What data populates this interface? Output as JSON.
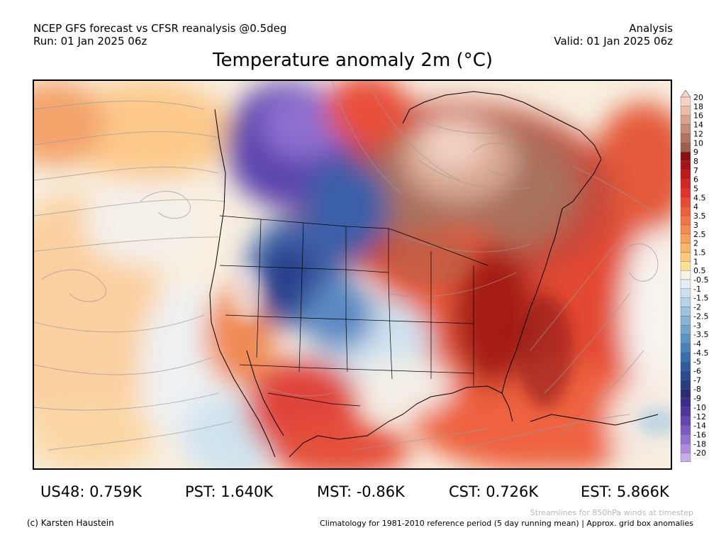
{
  "header": {
    "product": "NCEP GFS forecast vs CFSR reanalysis @0.5deg",
    "run": "Run: 01 Jan 2025 06z",
    "mode": "Analysis",
    "valid": "Valid: 01 Jan 2025 06z"
  },
  "title": "Temperature anomaly 2m (°C)",
  "colorbar": {
    "labels": [
      "20",
      "18",
      "16",
      "14",
      "12",
      "10",
      "9",
      "8",
      "7",
      "6",
      "5",
      "4.5",
      "4",
      "3.5",
      "3",
      "2.5",
      "2",
      "1.5",
      "1",
      "0.5",
      "-0.5",
      "-1",
      "-1.5",
      "-2",
      "-2.5",
      "-3",
      "-3.5",
      "-4",
      "-4.5",
      "-5",
      "-6",
      "-7",
      "-8",
      "-9",
      "-10",
      "-12",
      "-14",
      "-16",
      "-18",
      "-20"
    ],
    "colors": [
      "#f4d2c6",
      "#ecbca9",
      "#d8a38d",
      "#c48b76",
      "#b07460",
      "#9e5f4c",
      "#8a1010",
      "#a51515",
      "#bd1a1a",
      "#d42323",
      "#e2332b",
      "#ea4a32",
      "#ef5f3b",
      "#f37445",
      "#f68a50",
      "#f9a05d",
      "#fbb56b",
      "#fcc87e",
      "#fde095",
      "#f8f3e6",
      "#e4eef6",
      "#cde0ef",
      "#b6d2e8",
      "#9fc3df",
      "#88b4d6",
      "#72a4cd",
      "#5d94c3",
      "#4b82b8",
      "#3b6fac",
      "#2f5c9e",
      "#294b90",
      "#273c80",
      "#2a2c72",
      "#3b2b8a",
      "#4f349e",
      "#6545b0",
      "#7c5bc0",
      "#9473cf",
      "#ad8ddb",
      "#c9adea"
    ]
  },
  "stats": [
    {
      "label": "US48: 0.759K"
    },
    {
      "label": "PST: 1.640K"
    },
    {
      "label": "MST: -0.86K"
    },
    {
      "label": "CST: 0.726K"
    },
    {
      "label": "EST: 5.866K"
    }
  ],
  "footer": {
    "credit": "(c) Karsten Haustein",
    "streamlines": "Streamlines for 850hPa winds at timestep",
    "climatology": "Climatology for 1981-2010 reference period (5 day running mean) | Approx. grid box anomalies"
  }
}
